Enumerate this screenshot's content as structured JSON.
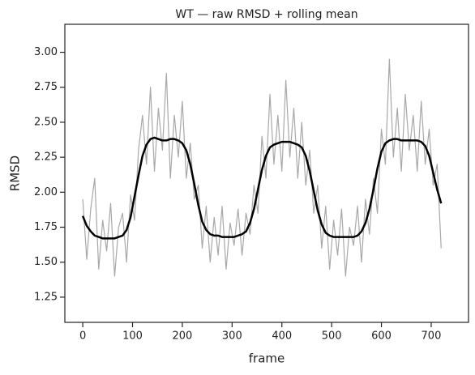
{
  "chart_data": {
    "type": "line",
    "title": "WT — raw RMSD + rolling mean",
    "xlabel": "frame",
    "ylabel": "RMSD",
    "x": [
      0,
      8,
      16,
      24,
      32,
      40,
      48,
      56,
      64,
      72,
      80,
      88,
      96,
      104,
      112,
      120,
      128,
      136,
      144,
      152,
      160,
      168,
      176,
      184,
      192,
      200,
      208,
      216,
      224,
      232,
      240,
      248,
      256,
      264,
      272,
      280,
      288,
      296,
      304,
      312,
      320,
      328,
      336,
      344,
      352,
      360,
      368,
      376,
      384,
      392,
      400,
      408,
      416,
      424,
      432,
      440,
      448,
      456,
      464,
      472,
      480,
      488,
      496,
      504,
      512,
      520,
      528,
      536,
      544,
      552,
      560,
      568,
      576,
      584,
      592,
      600,
      608,
      616,
      624,
      632,
      640,
      648,
      656,
      664,
      672,
      680,
      688,
      696,
      704,
      712,
      720
    ],
    "series": [
      {
        "color": "#a8a8a8",
        "width": 1.2,
        "values": [
          1.95,
          1.52,
          1.88,
          2.1,
          1.45,
          1.8,
          1.58,
          1.92,
          1.4,
          1.75,
          1.85,
          1.5,
          1.98,
          1.8,
          2.3,
          2.55,
          2.2,
          2.75,
          2.15,
          2.6,
          2.3,
          2.85,
          2.1,
          2.55,
          2.25,
          2.65,
          2.1,
          2.35,
          1.95,
          2.05,
          1.6,
          1.9,
          1.5,
          1.82,
          1.55,
          1.9,
          1.45,
          1.78,
          1.62,
          1.88,
          1.55,
          1.85,
          1.7,
          2.05,
          1.85,
          2.4,
          2.1,
          2.7,
          2.2,
          2.55,
          2.15,
          2.8,
          2.25,
          2.6,
          2.1,
          2.5,
          2.05,
          2.3,
          1.85,
          2.05,
          1.6,
          1.9,
          1.45,
          1.8,
          1.55,
          1.88,
          1.4,
          1.75,
          1.62,
          1.9,
          1.5,
          1.95,
          1.7,
          2.1,
          1.85,
          2.45,
          2.2,
          2.95,
          2.25,
          2.6,
          2.15,
          2.7,
          2.3,
          2.55,
          2.15,
          2.65,
          2.2,
          2.45,
          2.05,
          2.2,
          1.6
        ]
      },
      {
        "color": "#000000",
        "width": 2.5,
        "values": [
          1.83,
          1.76,
          1.72,
          1.69,
          1.68,
          1.67,
          1.67,
          1.67,
          1.67,
          1.68,
          1.69,
          1.73,
          1.82,
          1.97,
          2.12,
          2.26,
          2.34,
          2.38,
          2.39,
          2.38,
          2.37,
          2.37,
          2.38,
          2.38,
          2.37,
          2.35,
          2.3,
          2.2,
          2.06,
          1.91,
          1.79,
          1.73,
          1.7,
          1.69,
          1.69,
          1.68,
          1.68,
          1.68,
          1.68,
          1.69,
          1.7,
          1.72,
          1.78,
          1.88,
          2.02,
          2.16,
          2.26,
          2.32,
          2.34,
          2.35,
          2.36,
          2.36,
          2.36,
          2.35,
          2.34,
          2.32,
          2.26,
          2.15,
          2.01,
          1.87,
          1.77,
          1.71,
          1.69,
          1.68,
          1.68,
          1.68,
          1.68,
          1.68,
          1.68,
          1.69,
          1.72,
          1.78,
          1.88,
          2.02,
          2.17,
          2.29,
          2.35,
          2.37,
          2.38,
          2.38,
          2.37,
          2.37,
          2.37,
          2.37,
          2.37,
          2.36,
          2.33,
          2.26,
          2.14,
          2.02,
          1.92
        ]
      }
    ],
    "xlim": [
      -36,
      775
    ],
    "xticks": [
      0,
      100,
      200,
      300,
      400,
      500,
      600,
      700
    ],
    "ylim": [
      1.07,
      3.2
    ],
    "yticks": [
      1.25,
      {
        "value": 1.5,
        "label": "1.50"
      },
      1.75,
      {
        "value": 2,
        "label": "2.00"
      },
      2.25,
      {
        "value": 2.5,
        "label": "2.50"
      },
      2.75,
      {
        "value": 3,
        "label": "3.00"
      }
    ]
  }
}
